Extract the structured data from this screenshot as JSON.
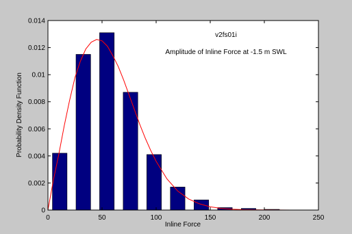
{
  "chart_data": {
    "type": "bar",
    "title_lines": [
      "v2fs01i",
      "Amplitude of Inline Force at -1.5 m SWL"
    ],
    "xlabel": "Inline Force",
    "ylabel": "Probability Density Function",
    "xlim": [
      0,
      250
    ],
    "ylim": [
      0,
      0.014
    ],
    "xticks": [
      "0",
      "50",
      "100",
      "150",
      "200",
      "250"
    ],
    "xtick_values": [
      0,
      50,
      100,
      150,
      200,
      250
    ],
    "yticks": [
      "0",
      "0.002",
      "0.004",
      "0.006",
      "0.008",
      "0.01",
      "0.012",
      "0.014"
    ],
    "ytick_values": [
      0,
      0.002,
      0.004,
      0.006,
      0.008,
      0.01,
      0.012,
      0.014
    ],
    "grid": false,
    "bar_color": "#000080",
    "bar_width": 13.5,
    "bars": {
      "x": [
        10.9,
        32.7,
        54.5,
        76.3,
        98.1,
        119.9,
        141.8,
        163.6,
        185.4,
        207.2
      ],
      "values": [
        0.0042,
        0.0115,
        0.0131,
        0.0087,
        0.0041,
        0.0017,
        0.00075,
        0.00018,
        0.00012,
        5e-05
      ]
    },
    "curve_color": "#ff0000",
    "curve": {
      "x": [
        0,
        5,
        10,
        15,
        20,
        25,
        30,
        35,
        40,
        45,
        50,
        55,
        60,
        65,
        70,
        75,
        80,
        85,
        90,
        95,
        100,
        110,
        120,
        130,
        140,
        150,
        160,
        170,
        180,
        200,
        225
      ],
      "y": [
        0.0,
        0.0022,
        0.0041,
        0.0062,
        0.0081,
        0.0098,
        0.011,
        0.0119,
        0.0124,
        0.0126,
        0.0125,
        0.0121,
        0.0114,
        0.0106,
        0.0096,
        0.0085,
        0.0074,
        0.0063,
        0.0053,
        0.0044,
        0.0036,
        0.0023,
        0.0014,
        0.00082,
        0.00046,
        0.00024,
        0.00012,
        6e-05,
        3e-05,
        1e-05,
        0.0
      ]
    }
  }
}
